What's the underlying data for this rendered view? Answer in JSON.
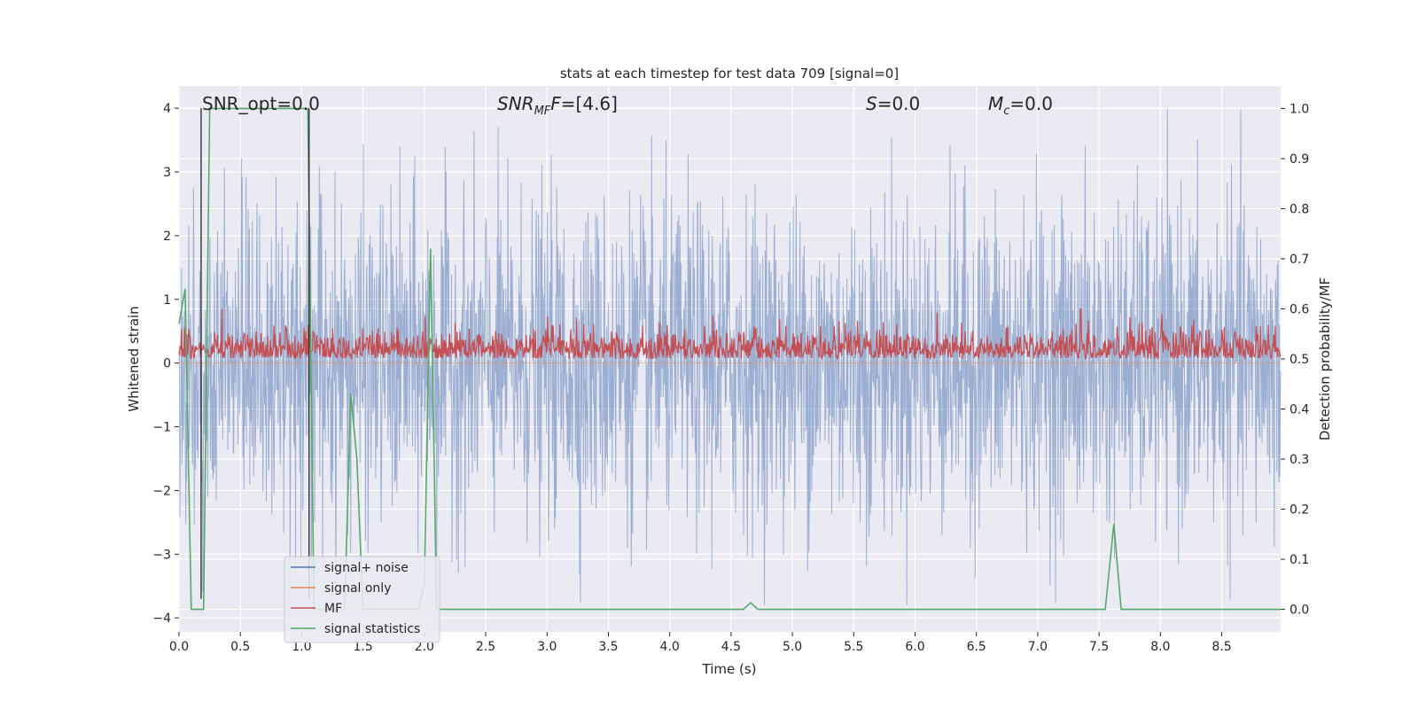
{
  "chart_data": {
    "type": "line",
    "title": "stats at each timestep for test data 709 [signal=0]",
    "xlabel": "Time (s)",
    "ylabel_left": "Whitened strain",
    "ylabel_right": "Detection probability/MF",
    "xlim": [
      0.0,
      8.98
    ],
    "ylim_left": [
      -4.22,
      4.35
    ],
    "ylim_right": [
      -0.045,
      1.045
    ],
    "xticks": [
      "0.0",
      "0.5",
      "1.0",
      "1.5",
      "2.0",
      "2.5",
      "3.0",
      "3.5",
      "4.0",
      "4.5",
      "5.0",
      "5.5",
      "6.0",
      "6.5",
      "7.0",
      "7.5",
      "8.0",
      "8.5"
    ],
    "yticks_left": [
      "4",
      "3",
      "2",
      "1",
      "0",
      "−1",
      "−2",
      "−3",
      "−4"
    ],
    "yticks_right": [
      "1.0",
      "0.9",
      "0.8",
      "0.7",
      "0.6",
      "0.5",
      "0.4",
      "0.3",
      "0.2",
      "0.1",
      "0.0"
    ],
    "grid": true,
    "annotations": {
      "snr_opt": "SNR_opt=0.0",
      "snr_mf_main": "SNR",
      "snr_mf_sub": "MF",
      "snr_mf_value": "=[4.6]",
      "s_main": "S",
      "s_value": "=0.0",
      "mc_main": "M",
      "mc_sub": "c",
      "mc_value": "=0.0"
    },
    "legend": {
      "position": "lower-left",
      "entries": [
        {
          "label": "signal+ noise",
          "color": "#4c72b0"
        },
        {
          "label": "signal only",
          "color": "#dd8452"
        },
        {
          "label": "MF",
          "color": "#c44e52"
        },
        {
          "label": "signal statistics",
          "color": "#55a868"
        }
      ]
    },
    "series": [
      {
        "name": "signal+ noise",
        "axis": "left",
        "kind": "noise",
        "color": "#4c72b0",
        "amplitude_sigma": 1.0,
        "range": [
          -3.8,
          4.0
        ]
      },
      {
        "name": "signal only",
        "axis": "left",
        "kind": "flat",
        "color": "#dd8452",
        "values": [
          0.0
        ]
      },
      {
        "name": "MF",
        "axis": "right",
        "kind": "noise",
        "color": "#c44e52",
        "baseline": 0.5,
        "range": [
          0.49,
          0.6
        ],
        "peak": {
          "x": 7.35,
          "y": 0.6
        }
      },
      {
        "name": "signal statistics",
        "axis": "right",
        "kind": "line",
        "color": "#55a868",
        "x": [
          0.0,
          0.05,
          0.1,
          0.15,
          0.2,
          0.25,
          0.3,
          0.35,
          0.4,
          0.45,
          0.5,
          0.55,
          0.6,
          0.65,
          0.7,
          0.75,
          0.8,
          0.85,
          0.9,
          0.95,
          1.0,
          1.05,
          1.1,
          1.15,
          1.2,
          1.25,
          1.3,
          1.35,
          1.4,
          1.45,
          1.5,
          1.55,
          1.6,
          1.65,
          1.7,
          1.75,
          1.8,
          1.85,
          1.9,
          1.95,
          2.0,
          2.05,
          2.1,
          2.15,
          2.2,
          4.6,
          4.66,
          4.72,
          7.55,
          7.62,
          7.68,
          8.98
        ],
        "y": [
          0.57,
          0.64,
          0.0,
          0.0,
          0.0,
          1.0,
          1.0,
          1.0,
          1.0,
          1.0,
          1.0,
          1.0,
          1.0,
          1.0,
          1.0,
          1.0,
          1.0,
          1.0,
          1.0,
          1.0,
          1.0,
          1.0,
          0.0,
          0.0,
          0.0,
          0.0,
          0.0,
          0.0,
          0.43,
          0.3,
          0.0,
          0.0,
          0.0,
          0.0,
          0.0,
          0.0,
          0.0,
          0.0,
          0.0,
          0.0,
          0.05,
          0.72,
          0.0,
          0.0,
          0.0,
          0.0,
          0.013,
          0.0,
          0.0,
          0.17,
          0.0,
          0.0
        ]
      },
      {
        "name": "",
        "axis": "left",
        "kind": "vline",
        "color": "#333333",
        "x": [
          0.18,
          1.06
        ],
        "ylim": [
          -3.7,
          4.0
        ]
      }
    ]
  }
}
